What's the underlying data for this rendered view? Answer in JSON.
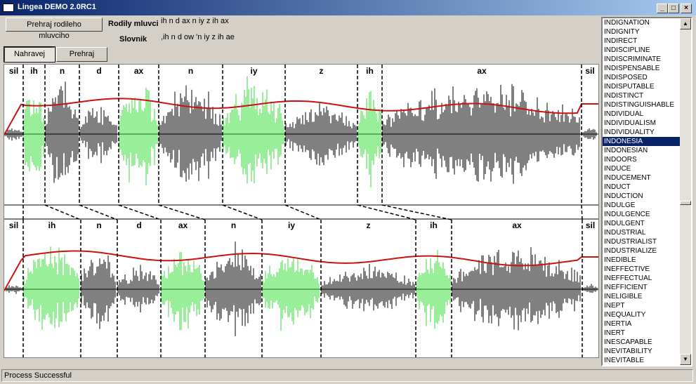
{
  "window": {
    "title": "Lingea DEMO 2.0RC1"
  },
  "caption_buttons": {
    "minimize": "_",
    "maximize": "□",
    "close": "×"
  },
  "toolbar": {
    "play_native_label": "Prehraj rodileho mluvciho",
    "differences_label": "Rodily mluvci",
    "native_transcription": "ih n d ax n iy z ih ax",
    "dictionary_label": "Slovnik",
    "dictionary_transcription": ",ih n d ow 'n iy z ih ae",
    "record_label": "Nahravej",
    "play_label": "Prehraj"
  },
  "top_phonemes": [
    "sil",
    "ih",
    "n",
    "d",
    "ax",
    "n",
    "iy",
    "z",
    "ih",
    "ax",
    "sil"
  ],
  "bottom_phonemes": [
    "sil",
    "ih",
    "n",
    "d",
    "ax",
    "n",
    "iy",
    "z",
    "ih",
    "ax",
    "sil"
  ],
  "colors": {
    "voiced": "#33dd33",
    "unvoiced": "#000000",
    "pitch": "#cc1111",
    "selection": "#0a246a"
  },
  "word_list": {
    "items": [
      "INDIGNATION",
      "INDIGNITY",
      "INDIRECT",
      "INDISCIPLINE",
      "INDISCRIMINATE",
      "INDISPENSABLE",
      "INDISPOSED",
      "INDISPUTABLE",
      "INDISTINCT",
      "INDISTINGUISHABLE",
      "INDIVIDUAL",
      "INDIVIDUALISM",
      "INDIVIDUALITY",
      "INDONESIA",
      "INDONESIAN",
      "INDOORS",
      "INDUCE",
      "INDUCEMENT",
      "INDUCT",
      "INDUCTION",
      "INDULGE",
      "INDULGENCE",
      "INDULGENT",
      "INDUSTRIAL",
      "INDUSTRIALIST",
      "INDUSTRIALIZE",
      "INEDIBLE",
      "INEFFECTIVE",
      "INEFFECTUAL",
      "INEFFICIENT",
      "INELIGIBLE",
      "INEPT",
      "INEQUALITY",
      "INERTIA",
      "INERT",
      "INESCAPABLE",
      "INEVITABILITY",
      "INEVITABLE"
    ],
    "selected": "INDONESIA",
    "scroll_up": "▲",
    "scroll_down": "▼"
  },
  "status": {
    "text": "Process Successful"
  }
}
